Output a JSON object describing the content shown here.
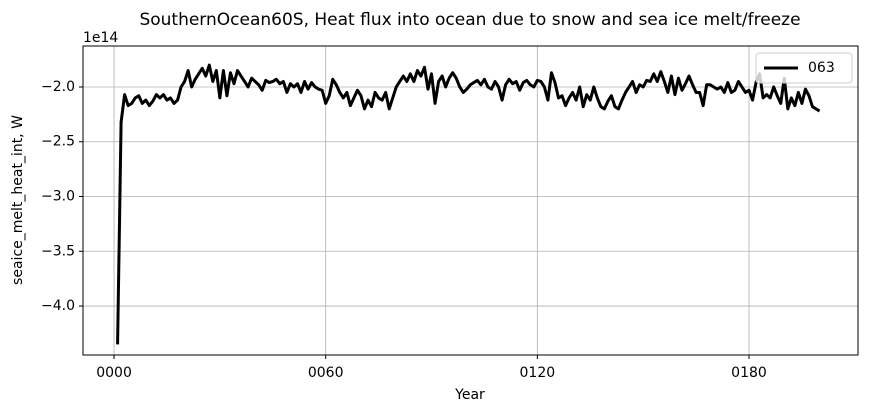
{
  "chart_data": {
    "type": "line",
    "title": "SouthernOcean60S, Heat flux into ocean due to snow and sea ice melt/freeze",
    "xlabel": "Year",
    "ylabel": "seaice_melt_heat_int, W",
    "offset_label": "1e14",
    "x": [
      1,
      2,
      3,
      4,
      5,
      6,
      7,
      8,
      9,
      10,
      11,
      12,
      13,
      14,
      15,
      16,
      17,
      18,
      19,
      20,
      21,
      22,
      23,
      24,
      25,
      26,
      27,
      28,
      29,
      30,
      31,
      32,
      33,
      34,
      35,
      36,
      37,
      38,
      39,
      40,
      41,
      42,
      43,
      44,
      45,
      46,
      47,
      48,
      49,
      50,
      51,
      52,
      53,
      54,
      55,
      56,
      57,
      58,
      59,
      60,
      61,
      62,
      63,
      64,
      65,
      66,
      67,
      68,
      69,
      70,
      71,
      72,
      73,
      74,
      75,
      76,
      77,
      78,
      79,
      80,
      81,
      82,
      83,
      84,
      85,
      86,
      87,
      88,
      89,
      90,
      91,
      92,
      93,
      94,
      95,
      96,
      97,
      98,
      99,
      100,
      101,
      102,
      103,
      104,
      105,
      106,
      107,
      108,
      109,
      110,
      111,
      112,
      113,
      114,
      115,
      116,
      117,
      118,
      119,
      120,
      121,
      122,
      123,
      124,
      125,
      126,
      127,
      128,
      129,
      130,
      131,
      132,
      133,
      134,
      135,
      136,
      137,
      138,
      139,
      140,
      141,
      142,
      143,
      144,
      145,
      146,
      147,
      148,
      149,
      150,
      151,
      152,
      153,
      154,
      155,
      156,
      157,
      158,
      159,
      160,
      161,
      162,
      163,
      164,
      165,
      166,
      167,
      168,
      169,
      170,
      171,
      172,
      173,
      174,
      175,
      176,
      177,
      178,
      179,
      180,
      181,
      182,
      183,
      184,
      185,
      186,
      187,
      188,
      189,
      190,
      191,
      192,
      193,
      194,
      195,
      196,
      197,
      198,
      199,
      200
    ],
    "series": [
      {
        "name": "063",
        "color": "#000000",
        "values": [
          -4.35,
          -2.32,
          -2.07,
          -2.17,
          -2.15,
          -2.1,
          -2.08,
          -2.15,
          -2.12,
          -2.17,
          -2.13,
          -2.07,
          -2.1,
          -2.07,
          -2.12,
          -2.1,
          -2.15,
          -2.12,
          -2.0,
          -1.95,
          -1.85,
          -2.0,
          -1.93,
          -1.88,
          -1.83,
          -1.9,
          -1.8,
          -1.95,
          -1.85,
          -2.1,
          -1.85,
          -2.08,
          -1.87,
          -1.97,
          -1.85,
          -1.9,
          -1.95,
          -2.0,
          -1.92,
          -1.95,
          -1.98,
          -2.03,
          -1.94,
          -1.96,
          -1.95,
          -1.93,
          -1.97,
          -1.95,
          -2.05,
          -1.97,
          -2.0,
          -1.97,
          -2.05,
          -1.95,
          -2.02,
          -1.96,
          -2.0,
          -2.02,
          -2.03,
          -2.15,
          -2.08,
          -1.93,
          -1.98,
          -2.05,
          -2.1,
          -2.05,
          -2.17,
          -2.1,
          -2.03,
          -2.08,
          -2.2,
          -2.12,
          -2.18,
          -2.05,
          -2.1,
          -2.12,
          -2.05,
          -2.2,
          -2.1,
          -2.0,
          -1.95,
          -1.9,
          -1.95,
          -1.88,
          -1.95,
          -1.85,
          -1.9,
          -1.82,
          -2.02,
          -1.88,
          -2.15,
          -1.95,
          -1.9,
          -2.0,
          -1.92,
          -1.87,
          -1.92,
          -2.0,
          -2.05,
          -2.02,
          -1.98,
          -1.96,
          -1.94,
          -1.98,
          -1.93,
          -2.0,
          -2.02,
          -1.95,
          -2.0,
          -2.12,
          -1.98,
          -1.93,
          -1.97,
          -1.95,
          -2.03,
          -1.96,
          -1.94,
          -1.98,
          -2.0,
          -1.94,
          -1.95,
          -2.0,
          -2.12,
          -1.87,
          -1.96,
          -2.1,
          -2.08,
          -2.17,
          -2.1,
          -2.05,
          -2.12,
          -2.0,
          -2.18,
          -2.07,
          -2.12,
          -2.0,
          -2.1,
          -2.18,
          -2.2,
          -2.13,
          -2.08,
          -2.18,
          -2.2,
          -2.12,
          -2.05,
          -2.0,
          -1.95,
          -2.05,
          -1.98,
          -2.0,
          -1.94,
          -1.95,
          -1.88,
          -1.95,
          -1.86,
          -1.95,
          -2.05,
          -1.9,
          -2.07,
          -1.92,
          -2.03,
          -1.97,
          -1.9,
          -1.98,
          -2.05,
          -2.05,
          -2.17,
          -1.98,
          -1.98,
          -2.0,
          -2.02,
          -2.0,
          -2.05,
          -1.96,
          -2.05,
          -2.03,
          -1.95,
          -2.0,
          -2.05,
          -2.03,
          -2.12,
          -1.96,
          -1.88,
          -2.1,
          -2.07,
          -2.1,
          -2.0,
          -2.08,
          -2.15,
          -1.92,
          -2.2,
          -2.1,
          -2.17,
          -2.05,
          -2.15,
          -2.02,
          -2.08,
          -2.18,
          -2.2,
          -2.22
        ]
      }
    ],
    "xlim": [
      -8.8,
      210.9
    ],
    "ylim": [
      -4.447,
      -1.626
    ],
    "xticks": [
      {
        "value": 0,
        "label": "0000"
      },
      {
        "value": 60,
        "label": "0060"
      },
      {
        "value": 120,
        "label": "0120"
      },
      {
        "value": 180,
        "label": "0180"
      }
    ],
    "yticks": [
      {
        "value": -4.0,
        "label": "−4.0"
      },
      {
        "value": -3.5,
        "label": "−3.5"
      },
      {
        "value": -3.0,
        "label": "−3.0"
      },
      {
        "value": -2.5,
        "label": "−2.5"
      },
      {
        "value": -2.0,
        "label": "−2.0"
      }
    ],
    "grid": true,
    "legend": "upper right"
  }
}
